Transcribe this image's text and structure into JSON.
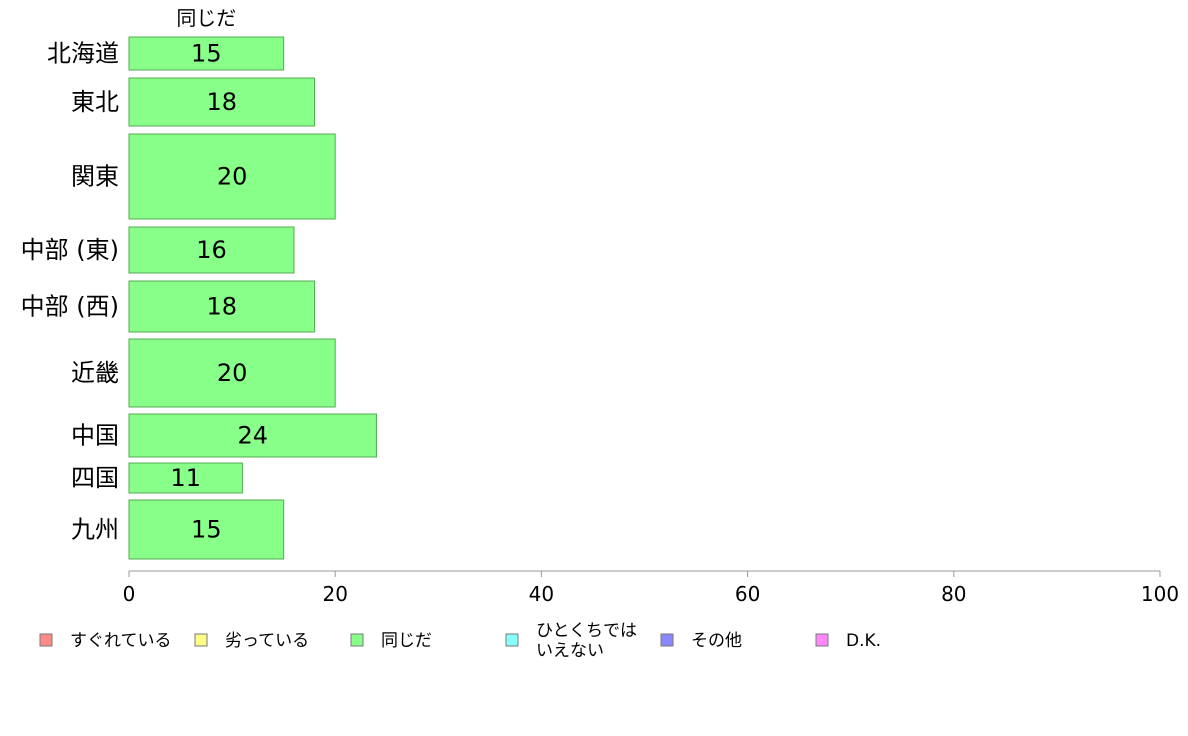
{
  "chart_data": {
    "type": "bar",
    "orientation": "horizontal",
    "stacked": true,
    "series_title": "同じだ",
    "categories": [
      "北海道",
      "東北",
      "関東",
      "中部 (東)",
      "中部 (西)",
      "近畿",
      "中国",
      "四国",
      "九州"
    ],
    "series": [
      {
        "name": "同じだ",
        "color": "#88ff88",
        "values": [
          15,
          18,
          20,
          16,
          18,
          20,
          24,
          11,
          15
        ]
      }
    ],
    "data_labels": [
      "15",
      "18",
      "20",
      "16",
      "18",
      "20",
      "24",
      "11",
      "15"
    ],
    "xlim": [
      0,
      100
    ],
    "x_ticks": [
      0,
      20,
      40,
      60,
      80,
      100
    ],
    "x_tick_labels": [
      "0",
      "20",
      "40",
      "60",
      "80",
      "100"
    ],
    "grid": false,
    "legend": {
      "placement": "bottom",
      "entries": [
        {
          "label_lines": [
            "すぐれている"
          ],
          "color": "#ff8888"
        },
        {
          "label_lines": [
            "劣っている"
          ],
          "color": "#ffff88"
        },
        {
          "label_lines": [
            "同じだ"
          ],
          "color": "#88ff88"
        },
        {
          "label_lines": [
            "ひとくちでは",
            "いえない"
          ],
          "color": "#88ffff"
        },
        {
          "label_lines": [
            "その他"
          ],
          "color": "#8888ff"
        },
        {
          "label_lines": [
            "D.K."
          ],
          "color": "#ff88ff"
        }
      ]
    }
  }
}
